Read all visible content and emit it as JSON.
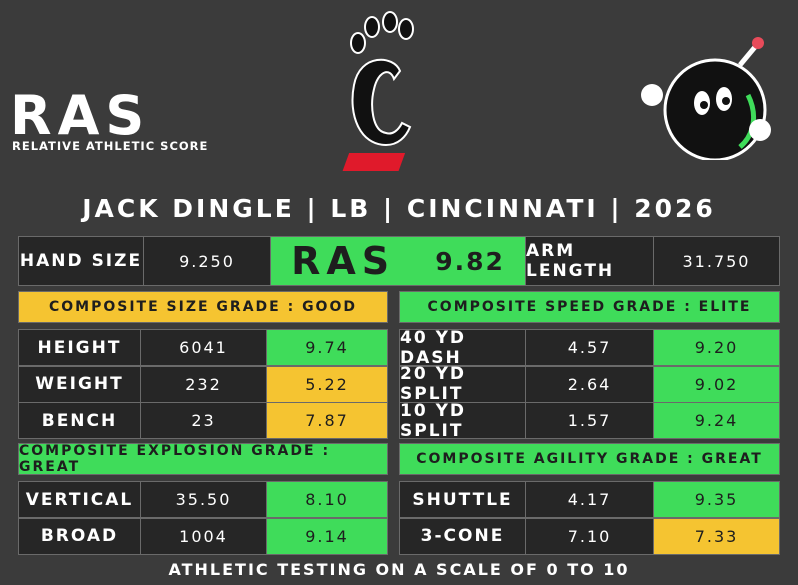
{
  "logo": {
    "text": "RAS",
    "subtitle": "RELATIVE ATHLETIC SCORE"
  },
  "title": "JACK DINGLE | LB | CINCINNATI | 2026",
  "summary": {
    "hand_size": {
      "label": "HAND SIZE",
      "value": "9.250"
    },
    "ras": {
      "logo": "RAS",
      "score": "9.82",
      "color": "#3fdc5a"
    },
    "arm_length": {
      "label": "ARM LENGTH",
      "value": "31.750"
    }
  },
  "sections": [
    {
      "header": "COMPOSITE SIZE GRADE : GOOD",
      "color": "#f5c431",
      "rows": [
        {
          "label": "HEIGHT",
          "value": "6041",
          "score": "9.74",
          "color": "#3fdc5a"
        },
        {
          "label": "WEIGHT",
          "value": "232",
          "score": "5.22",
          "color": "#f5c431"
        },
        {
          "label": "BENCH",
          "value": "23",
          "score": "7.87",
          "color": "#f5c431"
        }
      ]
    },
    {
      "header": "COMPOSITE SPEED GRADE : ELITE",
      "color": "#3fdc5a",
      "rows": [
        {
          "label": "40 YD DASH",
          "value": "4.57",
          "score": "9.20",
          "color": "#3fdc5a"
        },
        {
          "label": "20 YD SPLIT",
          "value": "2.64",
          "score": "9.02",
          "color": "#3fdc5a"
        },
        {
          "label": "10 YD SPLIT",
          "value": "1.57",
          "score": "9.24",
          "color": "#3fdc5a"
        }
      ]
    },
    {
      "header": "COMPOSITE EXPLOSION GRADE : GREAT",
      "color": "#3fdc5a",
      "rows": [
        {
          "label": "VERTICAL",
          "value": "35.50",
          "score": "8.10",
          "color": "#3fdc5a"
        },
        {
          "label": "BROAD",
          "value": "1004",
          "score": "9.14",
          "color": "#3fdc5a"
        }
      ]
    },
    {
      "header": "COMPOSITE AGILITY GRADE : GREAT",
      "color": "#3fdc5a",
      "rows": [
        {
          "label": "SHUTTLE",
          "value": "4.17",
          "score": "9.35",
          "color": "#3fdc5a"
        },
        {
          "label": "3-CONE",
          "value": "7.10",
          "score": "7.33",
          "color": "#f5c431"
        }
      ]
    }
  ],
  "footer": "ATHLETIC TESTING ON A SCALE OF 0 TO 10"
}
